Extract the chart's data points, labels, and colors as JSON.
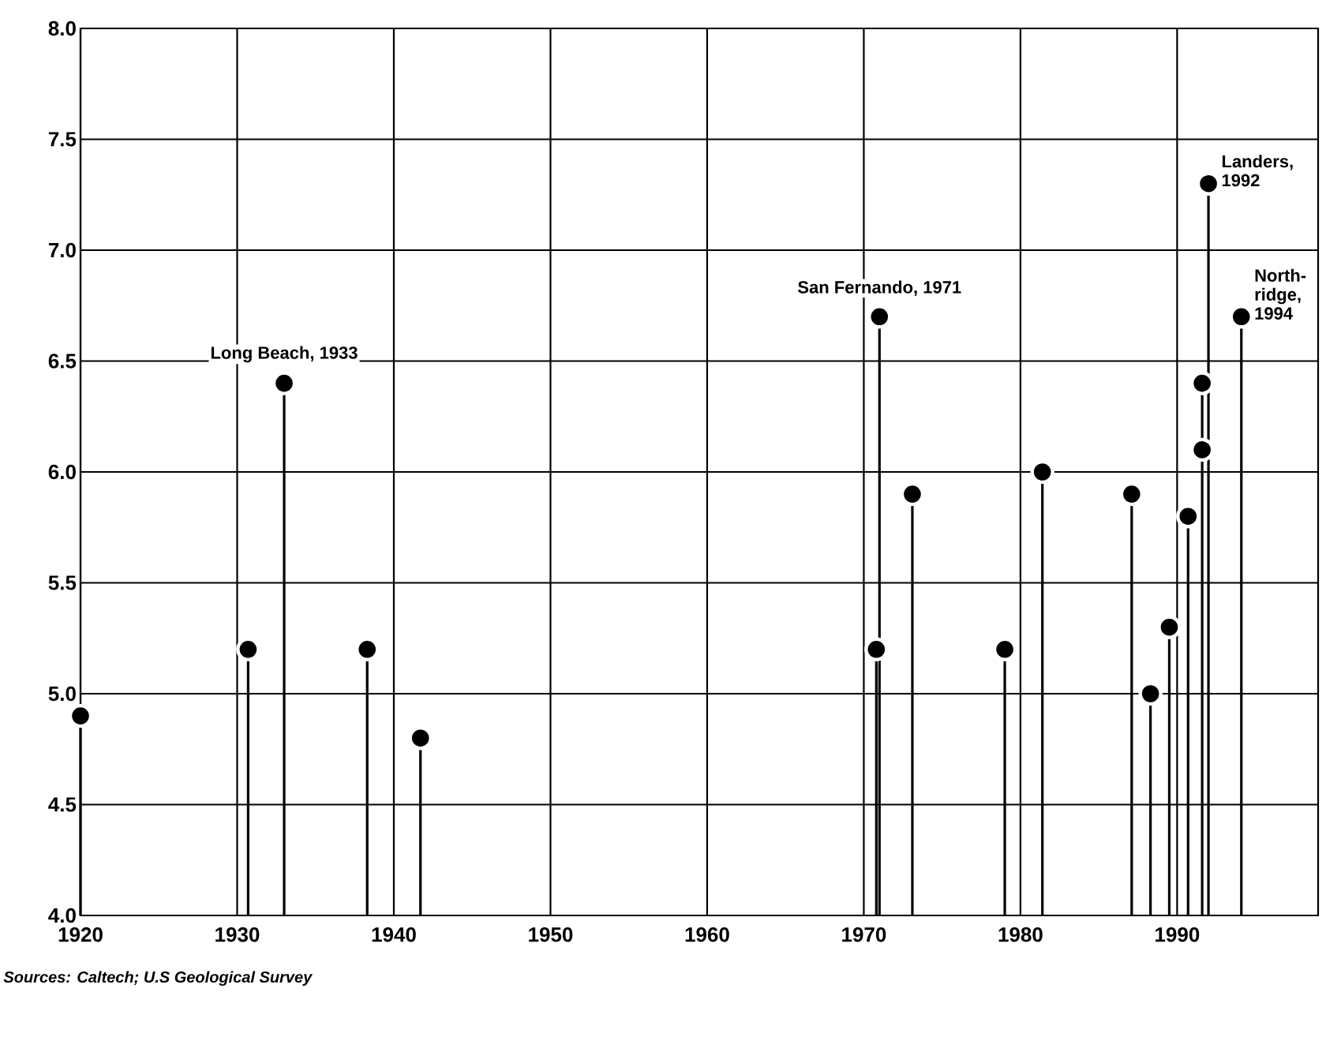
{
  "chart_data": {
    "type": "lollipop",
    "x": [
      1920.0,
      1930.7,
      1933.0,
      1938.3,
      1941.7,
      1970.8,
      1971.0,
      1973.1,
      1979.0,
      1981.4,
      1987.1,
      1988.3,
      1989.5,
      1990.7,
      1991.6,
      1991.6,
      1992.0,
      1994.1
    ],
    "values": [
      4.9,
      5.2,
      6.4,
      5.2,
      4.8,
      5.2,
      6.7,
      5.9,
      5.2,
      6.0,
      5.9,
      5.0,
      5.3,
      5.8,
      6.1,
      6.4,
      7.3,
      6.7
    ],
    "color": "#000000",
    "marker": "circle",
    "grid": true,
    "xlim": [
      1920,
      1999
    ],
    "xticks": [
      1920,
      1930,
      1940,
      1950,
      1960,
      1970,
      1980,
      1990
    ],
    "ylim": [
      4,
      8
    ],
    "yticks": [
      {
        "value": 4,
        "label": "4.0"
      },
      {
        "value": 4.5,
        "label": "4.5"
      },
      {
        "value": 5,
        "label": "5.0"
      },
      {
        "value": 5.5,
        "label": "5.5"
      },
      {
        "value": 6,
        "label": "6.0"
      },
      {
        "value": 6.5,
        "label": "6.5"
      },
      {
        "value": 7,
        "label": "7.0"
      },
      {
        "value": 7.5,
        "label": "7.5"
      },
      {
        "value": 8,
        "label": "8.0"
      }
    ],
    "annotations": [
      {
        "text": "Long Beach, 1933",
        "x": 1933,
        "y": 6.4
      },
      {
        "text": "San Fernando, 1971",
        "x": 1971.0,
        "y": 6.7
      },
      {
        "text": "Landers, 1992",
        "x": 1992.0,
        "y": 7.3
      },
      {
        "text": "North-ridge, 1994",
        "x": 1994.1,
        "y": 6.7
      },
      "Sources: Caltech; U.S Geological Survey"
    ]
  }
}
